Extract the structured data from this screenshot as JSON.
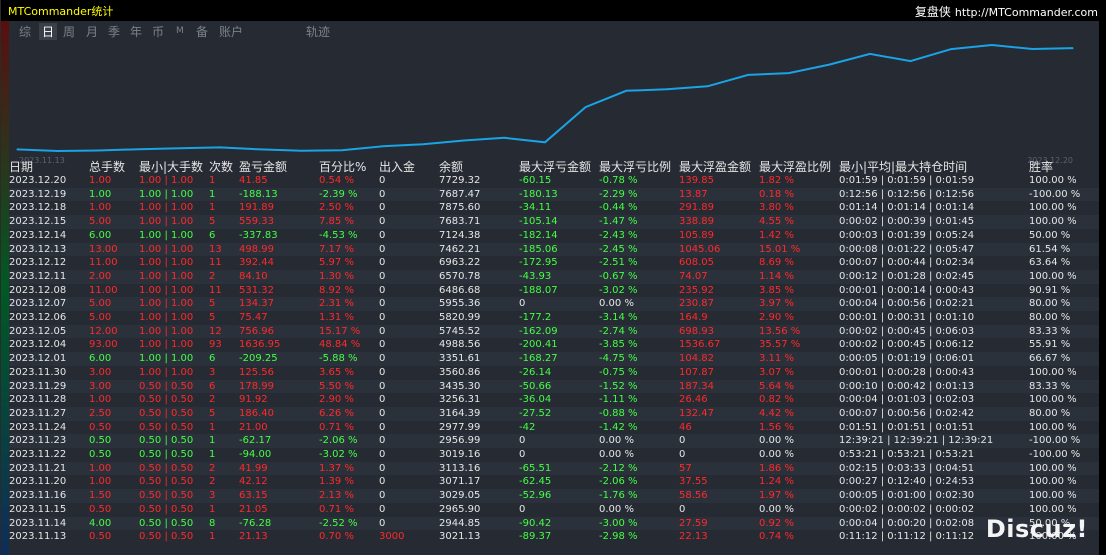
{
  "app_title": "MTCommander统计",
  "site": {
    "brand": "复盘侠",
    "url": "http://MTCommander.com"
  },
  "tabs": [
    "综",
    "日",
    "周",
    "月",
    "季",
    "年",
    "币",
    "M",
    "备",
    "账户",
    "轨迹"
  ],
  "active_tab": "日",
  "chart_data": {
    "type": "line",
    "x_start_label": "2023.11.13",
    "x_end_label": "2023.12.20",
    "x": [
      "2023.11.13",
      "2023.11.14",
      "2023.11.15",
      "2023.11.16",
      "2023.11.20",
      "2023.11.21",
      "2023.11.22",
      "2023.11.23",
      "2023.11.24",
      "2023.11.27",
      "2023.11.28",
      "2023.11.29",
      "2023.11.30",
      "2023.12.01",
      "2023.12.04",
      "2023.12.05",
      "2023.12.06",
      "2023.12.07",
      "2023.12.08",
      "2023.12.11",
      "2023.12.12",
      "2023.12.13",
      "2023.12.14",
      "2023.12.15",
      "2023.12.18",
      "2023.12.19",
      "2023.12.20"
    ],
    "values": [
      3021.13,
      2944.85,
      2965.9,
      3029.05,
      3071.17,
      3113.16,
      3019.16,
      2956.99,
      2977.99,
      3164.39,
      3256.31,
      3435.3,
      3560.86,
      3351.61,
      4988.56,
      5745.52,
      5820.99,
      5955.36,
      6486.68,
      6570.78,
      6963.22,
      7462.21,
      7124.38,
      7683.71,
      7875.6,
      7687.47,
      7729.32
    ],
    "line_color": "#1aa3e6"
  },
  "table": {
    "headers": [
      "日期",
      "总手数",
      "最小|大手数",
      "次数",
      "盈亏金额",
      "百分比%",
      "出入金",
      "余额",
      "最大浮亏金额",
      "最大浮亏比例",
      "最大浮盈金额",
      "最大浮盈比例",
      "最小|平均|最大持仓时间",
      "胜率"
    ],
    "rows": [
      [
        "2023.12.20",
        "1.00",
        "1.00 | 1.00",
        "1",
        "41.85",
        "0.54 %",
        "0",
        "7729.32",
        "-60.15",
        "-0.78 %",
        "139.85",
        "1.82 %",
        "0:01:59 | 0:01:59 | 0:01:59",
        "100.00 %"
      ],
      [
        "2023.12.19",
        "1.00",
        "1.00 | 1.00",
        "1",
        "-188.13",
        "-2.39 %",
        "0",
        "7687.47",
        "-180.13",
        "-2.29 %",
        "13.87",
        "0.18 %",
        "0:12:56 | 0:12:56 | 0:12:56",
        "-100.00 %"
      ],
      [
        "2023.12.18",
        "1.00",
        "1.00 | 1.00",
        "1",
        "191.89",
        "2.50 %",
        "0",
        "7875.60",
        "-34.11",
        "-0.44 %",
        "291.89",
        "3.80 %",
        "0:01:14 | 0:01:14 | 0:01:14",
        "100.00 %"
      ],
      [
        "2023.12.15",
        "5.00",
        "1.00 | 1.00",
        "5",
        "559.33",
        "7.85 %",
        "0",
        "7683.71",
        "-105.14",
        "-1.47 %",
        "338.89",
        "4.55 %",
        "0:00:02 | 0:00:39 | 0:01:45",
        "100.00 %"
      ],
      [
        "2023.12.14",
        "6.00",
        "1.00 | 1.00",
        "6",
        "-337.83",
        "-4.53 %",
        "0",
        "7124.38",
        "-182.14",
        "-2.43 %",
        "105.89",
        "1.42 %",
        "0:00:03 | 0:01:39 | 0:05:24",
        "50.00 %"
      ],
      [
        "2023.12.13",
        "13.00",
        "1.00 | 1.00",
        "13",
        "498.99",
        "7.17 %",
        "0",
        "7462.21",
        "-185.06",
        "-2.45 %",
        "1045.06",
        "15.01 %",
        "0:00:08 | 0:01:22 | 0:05:47",
        "61.54 %"
      ],
      [
        "2023.12.12",
        "11.00",
        "1.00 | 1.00",
        "11",
        "392.44",
        "5.97 %",
        "0",
        "6963.22",
        "-172.95",
        "-2.51 %",
        "608.05",
        "8.69 %",
        "0:00:07 | 0:00:44 | 0:02:34",
        "63.64 %"
      ],
      [
        "2023.12.11",
        "2.00",
        "1.00 | 1.00",
        "2",
        "84.10",
        "1.30 %",
        "0",
        "6570.78",
        "-43.93",
        "-0.67 %",
        "74.07",
        "1.14 %",
        "0:00:12 | 0:01:28 | 0:02:45",
        "100.00 %"
      ],
      [
        "2023.12.08",
        "11.00",
        "1.00 | 1.00",
        "11",
        "531.32",
        "8.92 %",
        "0",
        "6486.68",
        "-188.07",
        "-3.02 %",
        "235.92",
        "3.85 %",
        "0:00:01 | 0:00:14 | 0:00:43",
        "90.91 %"
      ],
      [
        "2023.12.07",
        "5.00",
        "1.00 | 1.00",
        "5",
        "134.37",
        "2.31 %",
        "0",
        "5955.36",
        "0",
        "0.00 %",
        "230.87",
        "3.97 %",
        "0:00:04 | 0:00:56 | 0:02:21",
        "80.00 %"
      ],
      [
        "2023.12.06",
        "5.00",
        "1.00 | 1.00",
        "5",
        "75.47",
        "1.31 %",
        "0",
        "5820.99",
        "-177.2",
        "-3.14 %",
        "164.9",
        "2.90 %",
        "0:00:01 | 0:00:31 | 0:01:10",
        "80.00 %"
      ],
      [
        "2023.12.05",
        "12.00",
        "1.00 | 1.00",
        "12",
        "756.96",
        "15.17 %",
        "0",
        "5745.52",
        "-162.09",
        "-2.74 %",
        "698.93",
        "13.56 %",
        "0:00:02 | 0:00:45 | 0:06:03",
        "83.33 %"
      ],
      [
        "2023.12.04",
        "93.00",
        "1.00 | 1.00",
        "93",
        "1636.95",
        "48.84 %",
        "0",
        "4988.56",
        "-200.41",
        "-3.85 %",
        "1536.67",
        "35.57 %",
        "0:00:02 | 0:00:45 | 0:06:12",
        "55.91 %"
      ],
      [
        "2023.12.01",
        "6.00",
        "1.00 | 1.00",
        "6",
        "-209.25",
        "-5.88 %",
        "0",
        "3351.61",
        "-168.27",
        "-4.75 %",
        "104.82",
        "3.11 %",
        "0:00:05 | 0:01:19 | 0:06:01",
        "66.67 %"
      ],
      [
        "2023.11.30",
        "3.00",
        "1.00 | 1.00",
        "3",
        "125.56",
        "3.65 %",
        "0",
        "3560.86",
        "-26.14",
        "-0.75 %",
        "107.87",
        "3.07 %",
        "0:00:01 | 0:00:28 | 0:00:43",
        "100.00 %"
      ],
      [
        "2023.11.29",
        "3.00",
        "0.50 | 0.50",
        "6",
        "178.99",
        "5.50 %",
        "0",
        "3435.30",
        "-50.66",
        "-1.52 %",
        "187.34",
        "5.64 %",
        "0:00:10 | 0:00:42 | 0:01:13",
        "83.33 %"
      ],
      [
        "2023.11.28",
        "1.00",
        "0.50 | 0.50",
        "2",
        "91.92",
        "2.90 %",
        "0",
        "3256.31",
        "-36.04",
        "-1.11 %",
        "26.46",
        "0.82 %",
        "0:00:04 | 0:01:03 | 0:02:03",
        "100.00 %"
      ],
      [
        "2023.11.27",
        "2.50",
        "0.50 | 0.50",
        "5",
        "186.40",
        "6.26 %",
        "0",
        "3164.39",
        "-27.52",
        "-0.88 %",
        "132.47",
        "4.42 %",
        "0:00:07 | 0:00:56 | 0:02:42",
        "80.00 %"
      ],
      [
        "2023.11.24",
        "0.50",
        "0.50 | 0.50",
        "1",
        "21.00",
        "0.71 %",
        "0",
        "2977.99",
        "-42",
        "-1.42 %",
        "46",
        "1.56 %",
        "0:01:51 | 0:01:51 | 0:01:51",
        "100.00 %"
      ],
      [
        "2023.11.23",
        "0.50",
        "0.50 | 0.50",
        "1",
        "-62.17",
        "-2.06 %",
        "0",
        "2956.99",
        "0",
        "0.00 %",
        "0",
        "0.00 %",
        "12:39:21 | 12:39:21 | 12:39:21",
        "-100.00 %"
      ],
      [
        "2023.11.22",
        "0.50",
        "0.50 | 0.50",
        "1",
        "-94.00",
        "-3.02 %",
        "0",
        "3019.16",
        "0",
        "0.00 %",
        "0",
        "0.00 %",
        "0:53:21 | 0:53:21 | 0:53:21",
        "-100.00 %"
      ],
      [
        "2023.11.21",
        "1.00",
        "0.50 | 0.50",
        "2",
        "41.99",
        "1.37 %",
        "0",
        "3113.16",
        "-65.51",
        "-2.12 %",
        "57",
        "1.86 %",
        "0:02:15 | 0:03:33 | 0:04:51",
        "100.00 %"
      ],
      [
        "2023.11.20",
        "1.00",
        "0.50 | 0.50",
        "2",
        "42.12",
        "1.39 %",
        "0",
        "3071.17",
        "-62.45",
        "-2.06 %",
        "37.55",
        "1.24 %",
        "0:00:27 | 0:12:40 | 0:24:53",
        "100.00 %"
      ],
      [
        "2023.11.16",
        "1.50",
        "0.50 | 0.50",
        "3",
        "63.15",
        "2.13 %",
        "0",
        "3029.05",
        "-52.96",
        "-1.76 %",
        "58.56",
        "1.97 %",
        "0:00:05 | 0:01:00 | 0:02:30",
        "100.00 %"
      ],
      [
        "2023.11.15",
        "0.50",
        "0.50 | 0.50",
        "1",
        "21.05",
        "0.71 %",
        "0",
        "2965.90",
        "0",
        "0.00 %",
        "0",
        "0.00 %",
        "0:00:02 | 0:00:02 | 0:00:02",
        "100.00 %"
      ],
      [
        "2023.11.14",
        "4.00",
        "0.50 | 0.50",
        "8",
        "-76.28",
        "-2.52 %",
        "0",
        "2944.85",
        "-90.42",
        "-3.00 %",
        "27.59",
        "0.92 %",
        "0:00:04 | 0:00:20 | 0:02:08",
        "50.00 %"
      ],
      [
        "2023.11.13",
        "0.50",
        "0.50 | 0.50",
        "1",
        "21.13",
        "0.70 %",
        "3000",
        "3021.13",
        "-89.37",
        "-2.98 %",
        "22.13",
        "0.74 %",
        "0:11:12 | 0:11:12 | 0:11:12",
        "100.00 %"
      ]
    ]
  },
  "watermark": "Discuz!"
}
